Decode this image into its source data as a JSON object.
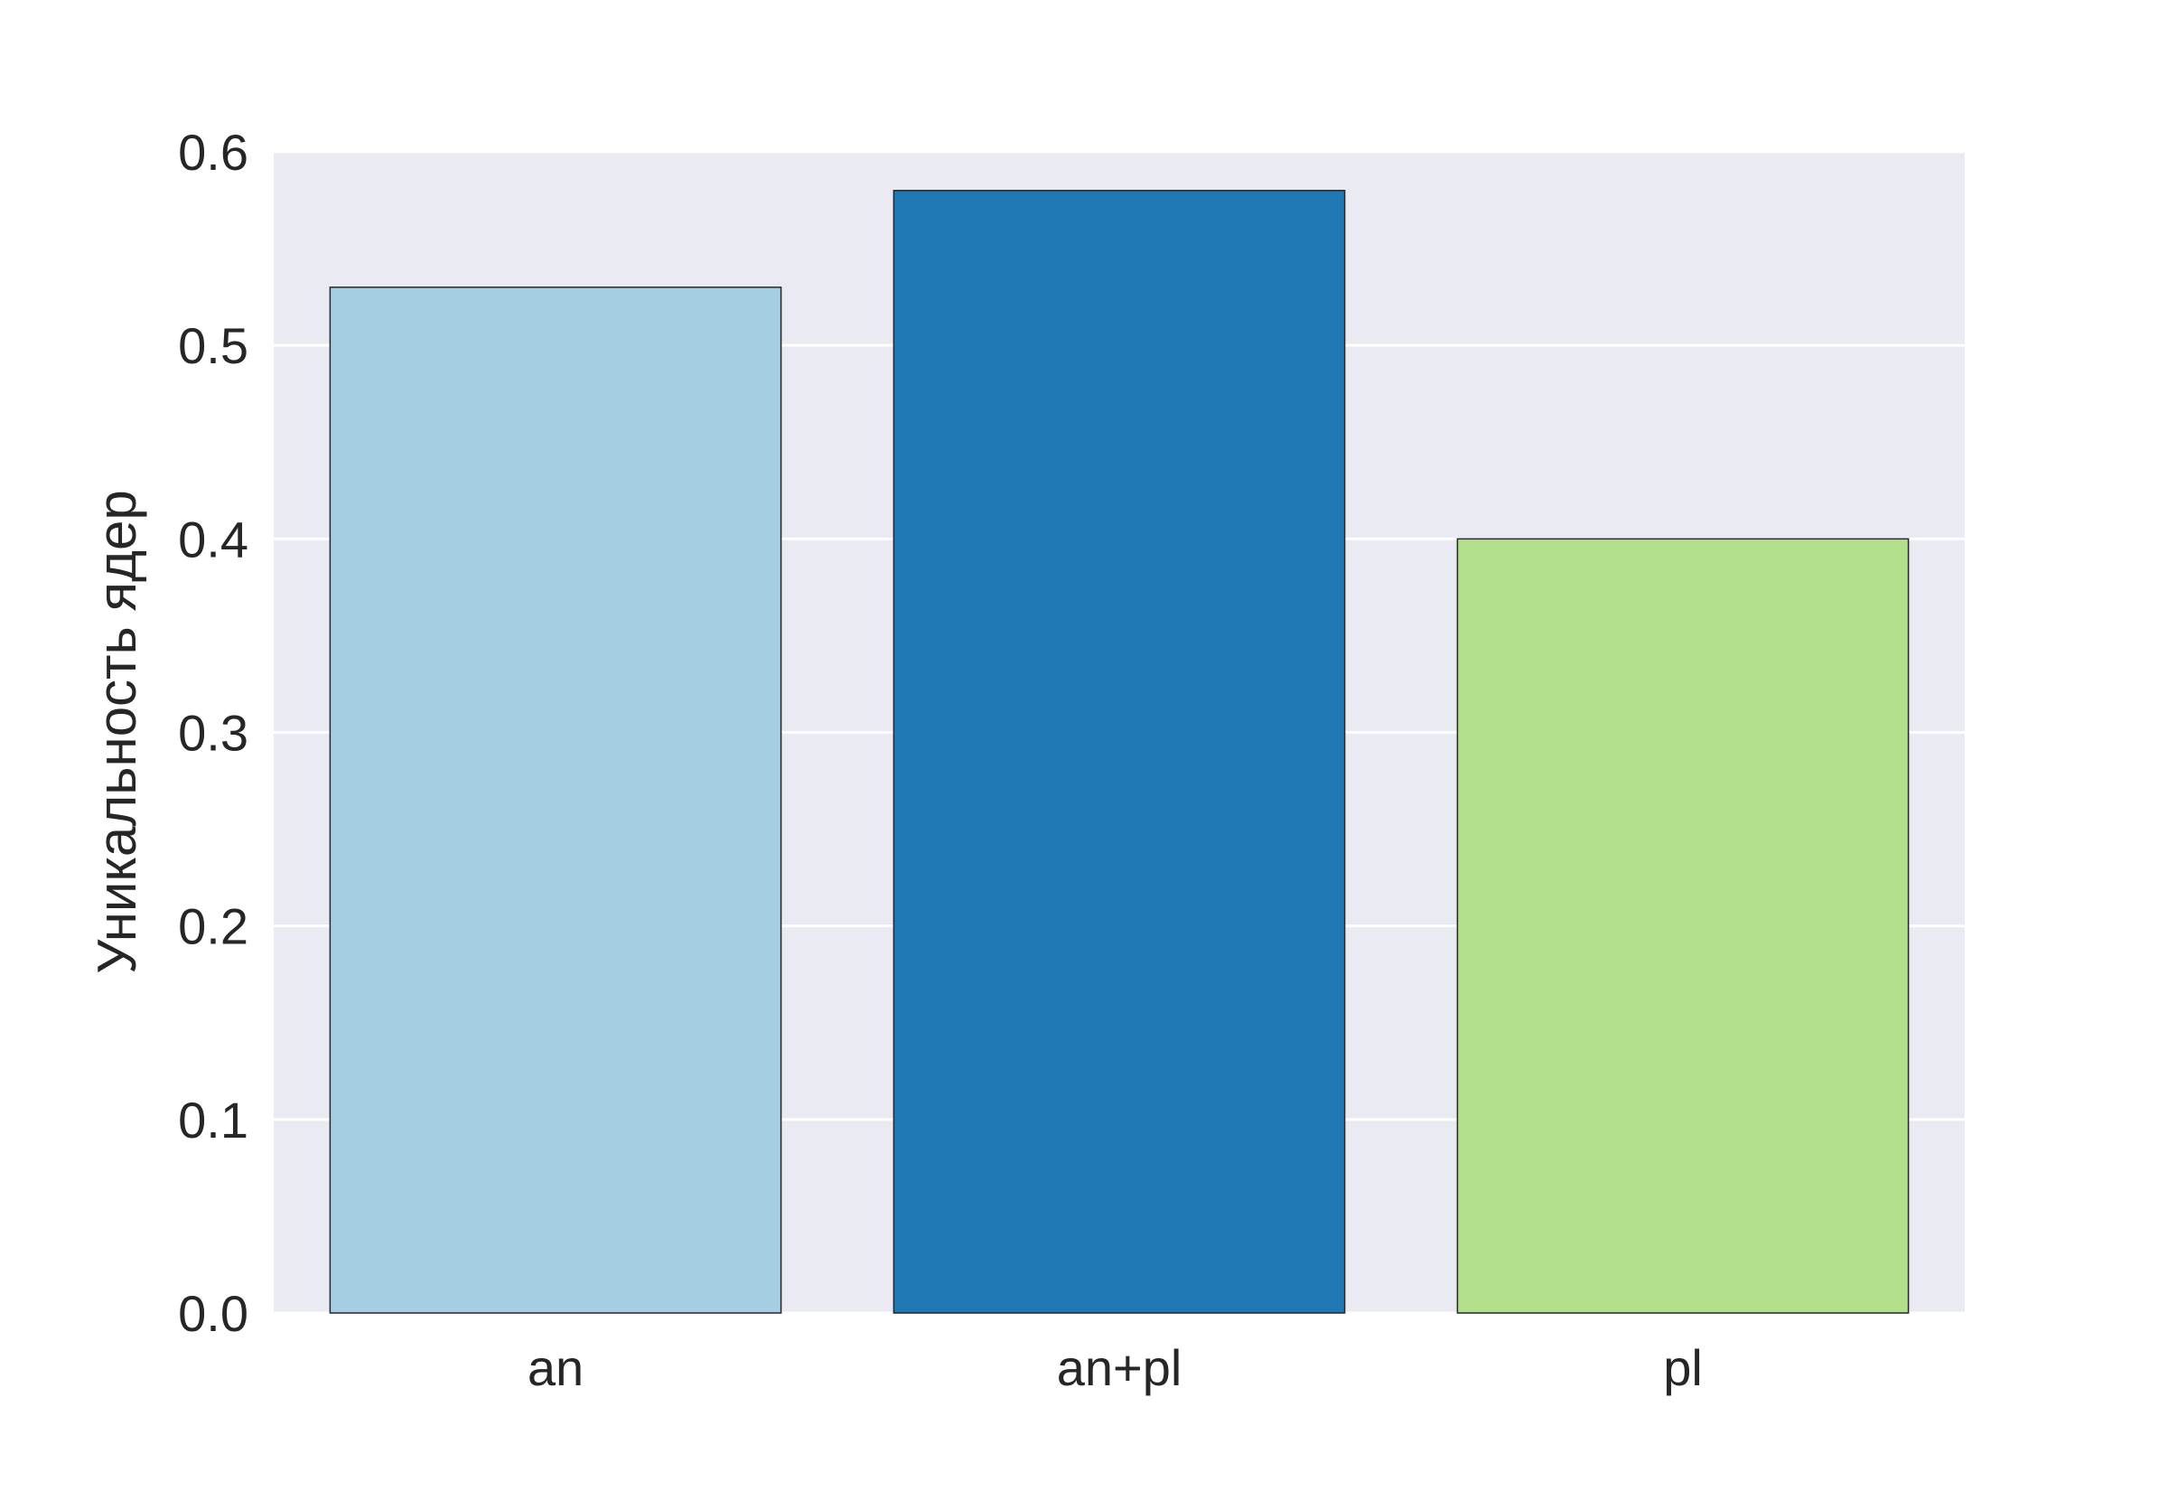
{
  "chart_data": {
    "type": "bar",
    "categories": [
      "an",
      "an+pl",
      "pl"
    ],
    "values": [
      0.53,
      0.58,
      0.4
    ],
    "colors": [
      "#a6cee3",
      "#1f78b4",
      "#b2df8a"
    ],
    "title": "",
    "xlabel": "",
    "ylabel": "Уникальность ядер",
    "ylim": [
      0,
      0.6
    ],
    "yticks": [
      0.0,
      0.1,
      0.2,
      0.3,
      0.4,
      0.5,
      0.6
    ],
    "ytick_labels": [
      "0.0",
      "0.1",
      "0.2",
      "0.3",
      "0.4",
      "0.5",
      "0.6"
    ],
    "grid": true,
    "legend": "none",
    "background": "#eaeaf2"
  }
}
